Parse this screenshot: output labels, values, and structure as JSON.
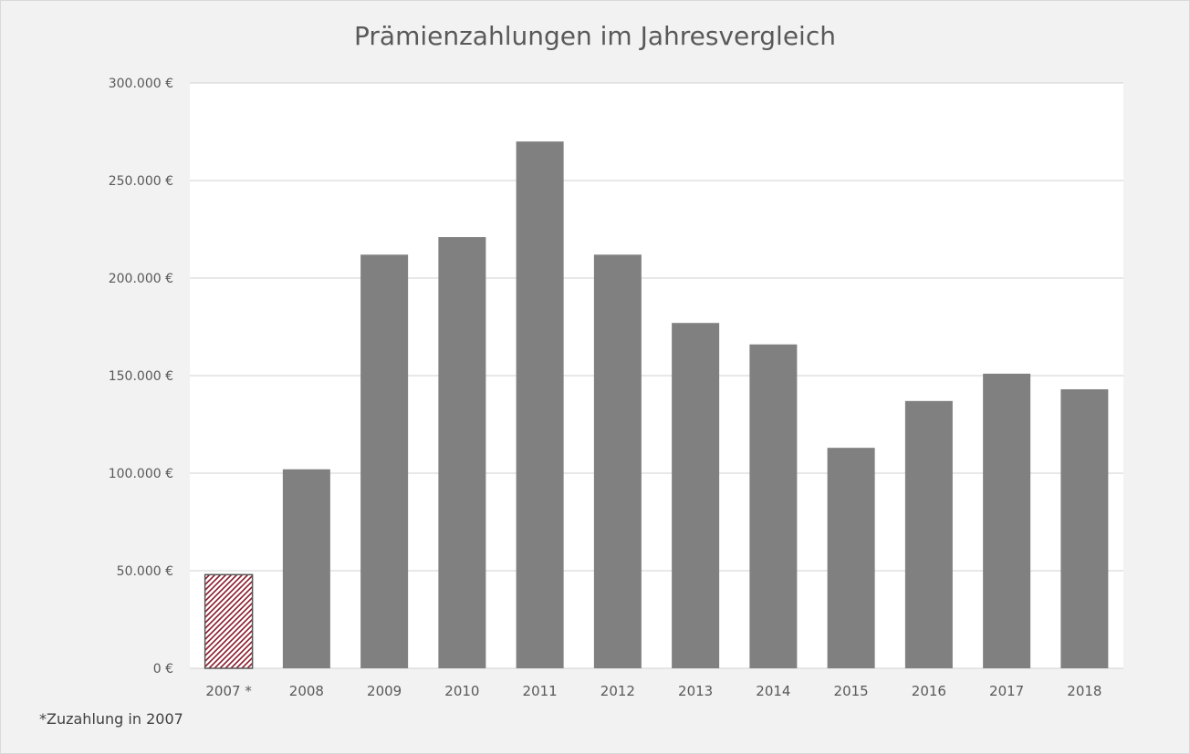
{
  "chart_data": {
    "type": "bar",
    "title": "Prämienzahlungen im Jahresvergleich",
    "xlabel": "",
    "ylabel": "",
    "categories": [
      "2007 *",
      "2008",
      "2009",
      "2010",
      "2011",
      "2012",
      "2013",
      "2014",
      "2015",
      "2016",
      "2017",
      "2018"
    ],
    "values": [
      48000,
      102000,
      212000,
      221000,
      270000,
      212000,
      177000,
      166000,
      113000,
      137000,
      151000,
      143000
    ],
    "ylim": [
      0,
      300000
    ],
    "y_ticks": [
      0,
      50000,
      100000,
      150000,
      200000,
      250000,
      300000
    ],
    "y_tick_labels": [
      "0 €",
      "50.000 €",
      "100.000 €",
      "150.000 €",
      "200.000 €",
      "250.000 €",
      "300.000 €"
    ],
    "grid": true,
    "legend": "none",
    "bar_color": "#808080",
    "highlight_bar": {
      "category": "2007 *",
      "fill": "hatched",
      "pattern_color": "#8b1a2b",
      "border_color": "#595959"
    },
    "footnote": "*Zuzahlung in 2007"
  }
}
